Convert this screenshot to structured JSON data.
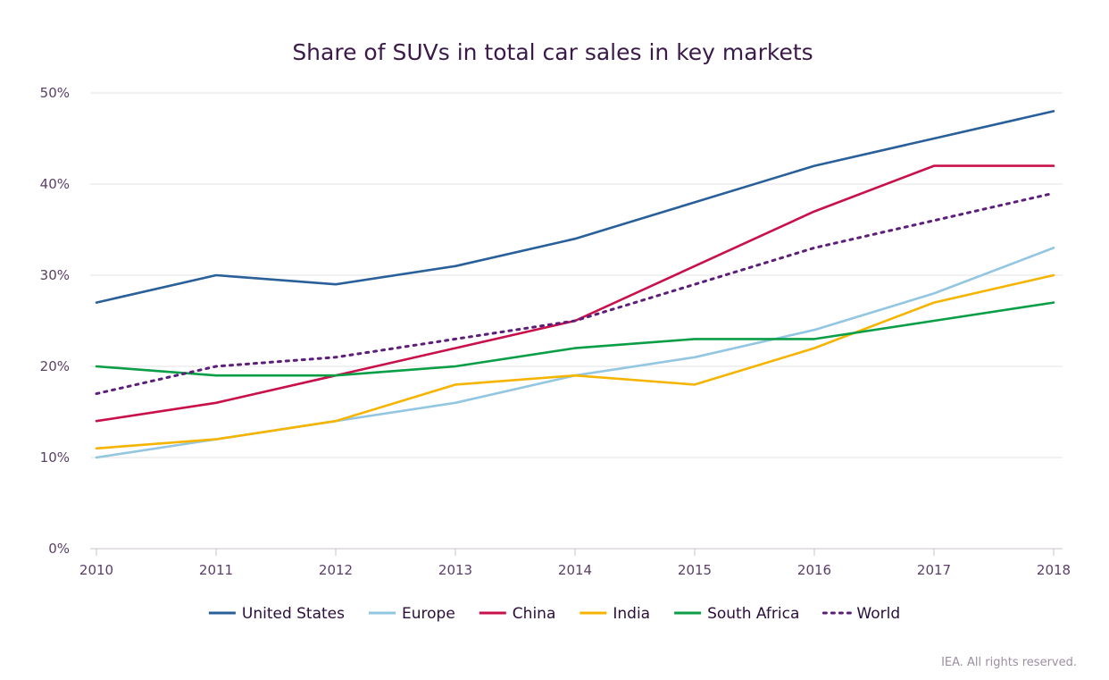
{
  "credit": "IEA. All rights reserved.",
  "chart_data": {
    "type": "line",
    "title": "Share of SUVs in total car sales in key markets",
    "xlabel": "",
    "ylabel": "",
    "x": [
      "2010",
      "2011",
      "2012",
      "2013",
      "2014",
      "2015",
      "2016",
      "2017",
      "2018"
    ],
    "ylim": [
      0,
      50
    ],
    "yticks": [
      0,
      10,
      20,
      30,
      40,
      50
    ],
    "ytick_labels": [
      "0%",
      "10%",
      "20%",
      "30%",
      "40%",
      "50%"
    ],
    "grid": "horizontal",
    "legend_position": "bottom",
    "series": [
      {
        "name": "United States",
        "color": "#2a6099",
        "dashed": false,
        "values": [
          27,
          30,
          29,
          31,
          34,
          38,
          42,
          45,
          48
        ]
      },
      {
        "name": "Europe",
        "color": "#93c6e0",
        "dashed": false,
        "values": [
          10,
          12,
          14,
          16,
          19,
          21,
          24,
          28,
          33
        ]
      },
      {
        "name": "China",
        "color": "#c8104b",
        "dashed": false,
        "values": [
          14,
          16,
          19,
          22,
          25,
          31,
          37,
          42,
          42
        ]
      },
      {
        "name": "India",
        "color": "#f5b400",
        "dashed": false,
        "values": [
          11,
          12,
          14,
          18,
          19,
          18,
          22,
          27,
          30
        ]
      },
      {
        "name": "South Africa",
        "color": "#0a9e46",
        "dashed": false,
        "values": [
          20,
          19,
          19,
          20,
          22,
          23,
          23,
          25,
          27
        ]
      },
      {
        "name": "World",
        "color": "#5c1e78",
        "dashed": true,
        "values": [
          17,
          20,
          21,
          23,
          25,
          29,
          33,
          36,
          39
        ]
      }
    ]
  }
}
